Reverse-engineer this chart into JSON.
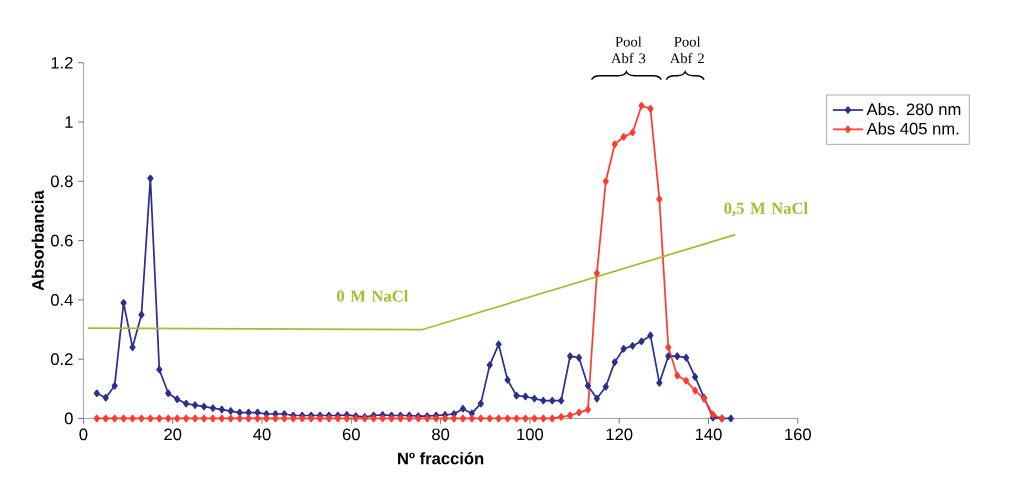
{
  "chart_data": {
    "type": "line",
    "xlabel": "Nº fracción",
    "ylabel": "Absorbancia",
    "xlim": [
      0,
      160
    ],
    "xticks": [
      0,
      20,
      40,
      60,
      80,
      100,
      120,
      140,
      160
    ],
    "ylim": [
      0,
      1.2
    ],
    "yticks": [
      0,
      0.2,
      0.4,
      0.6,
      0.8,
      1,
      1.2
    ],
    "marker": "diamond",
    "legend": "right",
    "grid": false,
    "series": [
      {
        "name": "Abs. 280 nm",
        "color": "#2b2f8f",
        "x": [
          3,
          5,
          7,
          9,
          11,
          13,
          15,
          17,
          19,
          21,
          23,
          25,
          27,
          29,
          31,
          33,
          35,
          37,
          39,
          41,
          43,
          45,
          47,
          49,
          51,
          53,
          55,
          57,
          59,
          61,
          63,
          65,
          67,
          69,
          71,
          73,
          75,
          77,
          79,
          81,
          83,
          85,
          87,
          89,
          91,
          93,
          95,
          97,
          99,
          101,
          103,
          105,
          107,
          109,
          111,
          113,
          115,
          117,
          119,
          121,
          123,
          125,
          127,
          129,
          131,
          133,
          135,
          137,
          139,
          141,
          143,
          145
        ],
        "values": [
          0.085,
          0.07,
          0.11,
          0.39,
          0.24,
          0.35,
          0.81,
          0.165,
          0.085,
          0.065,
          0.05,
          0.045,
          0.04,
          0.035,
          0.03,
          0.025,
          0.02,
          0.02,
          0.02,
          0.015,
          0.015,
          0.015,
          0.01,
          0.01,
          0.01,
          0.01,
          0.01,
          0.01,
          0.012,
          0.008,
          0.005,
          0.01,
          0.012,
          0.01,
          0.01,
          0.01,
          0.008,
          0.008,
          0.01,
          0.012,
          0.015,
          0.033,
          0.017,
          0.05,
          0.18,
          0.25,
          0.13,
          0.077,
          0.074,
          0.067,
          0.06,
          0.06,
          0.06,
          0.21,
          0.205,
          0.11,
          0.067,
          0.107,
          0.19,
          0.235,
          0.245,
          0.26,
          0.28,
          0.12,
          0.21,
          0.21,
          0.205,
          0.14,
          0.07,
          0.003,
          0.0,
          0.0
        ]
      },
      {
        "name": "Abs 405 nm.",
        "color": "#ff3b2f",
        "x": [
          3,
          5,
          7,
          9,
          11,
          13,
          15,
          17,
          19,
          21,
          23,
          25,
          27,
          29,
          31,
          33,
          35,
          37,
          39,
          41,
          43,
          45,
          47,
          49,
          51,
          53,
          55,
          57,
          59,
          61,
          63,
          65,
          67,
          69,
          71,
          73,
          75,
          77,
          79,
          81,
          83,
          85,
          87,
          89,
          91,
          93,
          95,
          97,
          99,
          101,
          103,
          105,
          107,
          109,
          111,
          113,
          115,
          117,
          119,
          121,
          123,
          125,
          127,
          129,
          131,
          133,
          135,
          137,
          139,
          141,
          143
        ],
        "values": [
          0,
          0,
          0,
          0,
          0,
          0,
          0,
          0,
          0,
          0,
          0,
          0,
          0,
          0,
          0,
          0,
          0,
          0,
          0,
          0,
          0,
          0,
          0,
          0,
          0,
          0,
          0,
          0,
          0,
          0,
          0,
          0,
          0,
          0,
          0,
          0,
          0,
          0,
          0,
          0,
          0,
          0,
          0,
          0,
          0,
          0,
          0,
          0,
          0,
          0,
          0,
          0,
          0.005,
          0.01,
          0.02,
          0.03,
          0.49,
          0.8,
          0.925,
          0.95,
          0.965,
          1.055,
          1.045,
          0.74,
          0.24,
          0.145,
          0.127,
          0.094,
          0.067,
          0.013,
          0
        ]
      },
      {
        "type": "line",
        "marker": "none",
        "color": "#9fc02e",
        "x": [
          1,
          76,
          146
        ],
        "values": [
          0.305,
          0.3,
          0.62
        ]
      }
    ],
    "annotations": [
      "0 M NaCl",
      "0,5 M NaCl",
      "Pool Abf 3",
      "Pool Abf 2"
    ]
  }
}
